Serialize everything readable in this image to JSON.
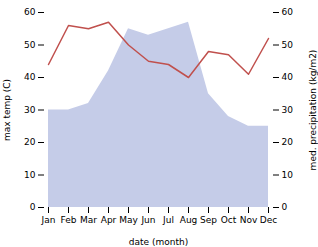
{
  "chart_data": {
    "type": "line",
    "xlabel": "date (month)",
    "ylabel": "max temp (C)",
    "y2label": "med. precipitation (kg/m2)",
    "categories": [
      "Jan",
      "Feb",
      "Mar",
      "Apr",
      "May",
      "Jun",
      "Jul",
      "Aug",
      "Sep",
      "Oct",
      "Nov",
      "Dec"
    ],
    "series": [
      {
        "type": "line",
        "color": "#c0504d",
        "values": [
          44,
          56,
          55,
          57,
          50,
          45,
          44,
          40,
          48,
          47,
          41,
          52
        ]
      },
      {
        "type": "area",
        "color": "#c5cce8",
        "axis": "y2",
        "values": [
          30,
          30,
          32,
          42,
          55,
          53,
          55,
          57,
          35,
          28,
          25,
          25
        ]
      }
    ],
    "ylim": [
      0,
      60
    ],
    "yticks": [
      0,
      10,
      20,
      30,
      40,
      50,
      60
    ],
    "y2lim": [
      0,
      60
    ],
    "y2ticks": [
      0,
      10,
      20,
      30,
      40,
      50,
      60
    ],
    "grid": false
  }
}
